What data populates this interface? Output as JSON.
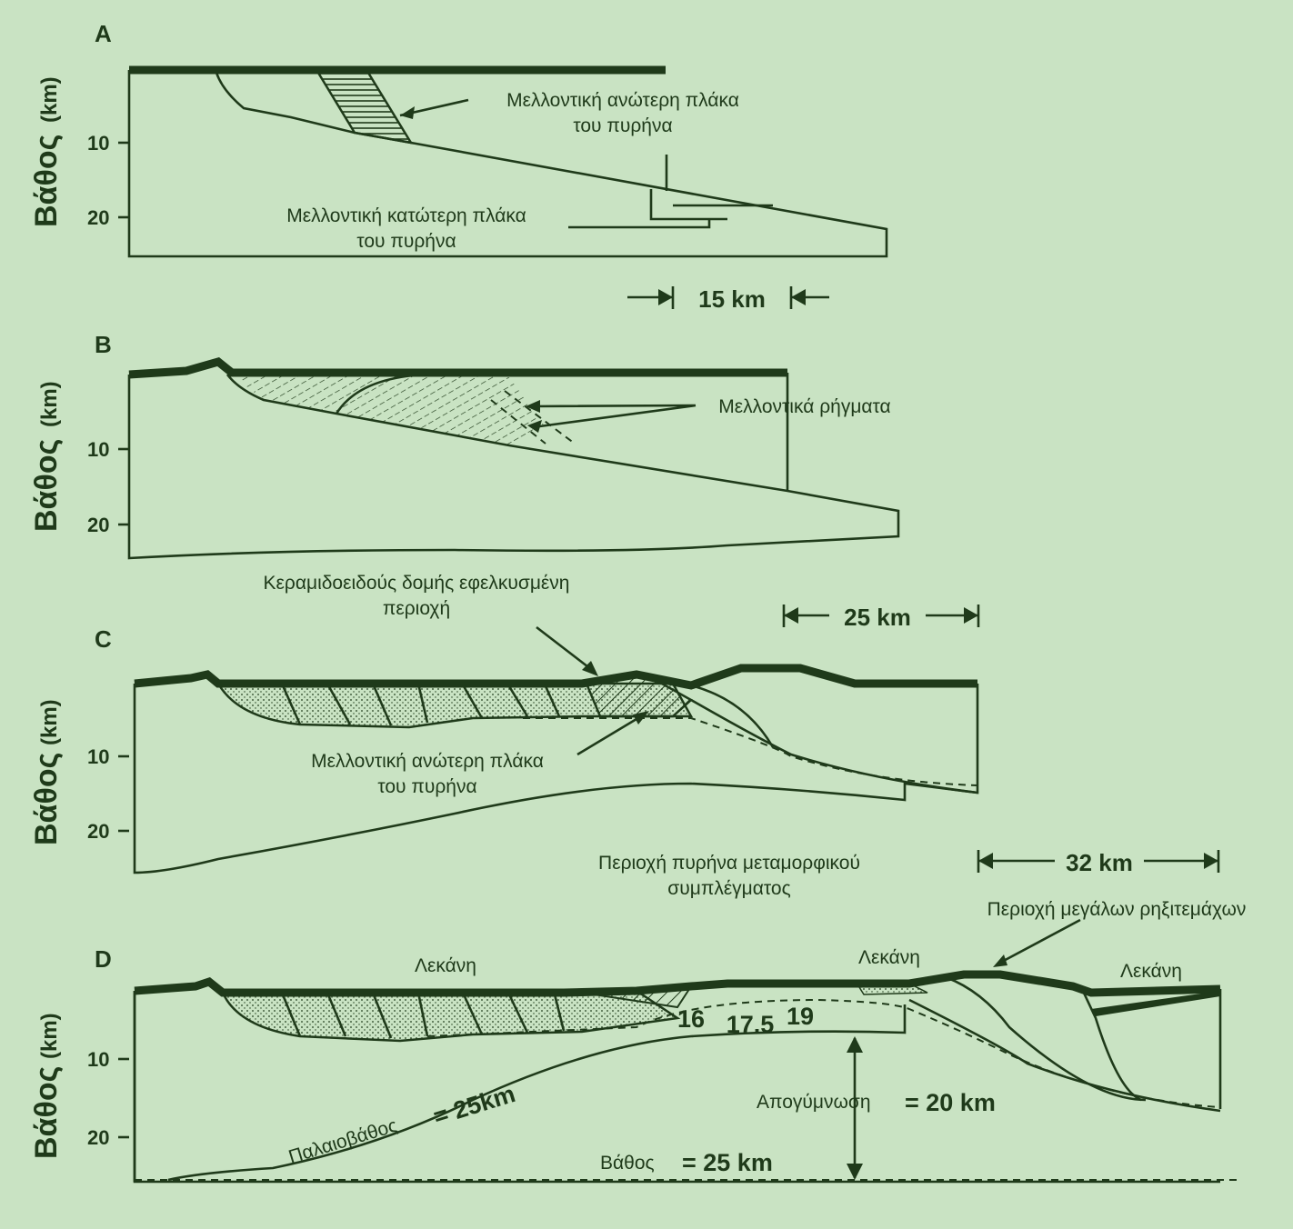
{
  "panels": {
    "A": {
      "letter": "A"
    },
    "B": {
      "letter": "B"
    },
    "C": {
      "letter": "C"
    },
    "D": {
      "letter": "D"
    }
  },
  "axis": {
    "title": "Βάθος",
    "unit": "(km)",
    "ticks": [
      "10",
      "20"
    ]
  },
  "labels": {
    "a_upper_1": "Μελλοντική ανώτερη πλάκα",
    "a_upper_2": "του πυρήνα",
    "a_lower_1": "Μελλοντική κατώτερη πλάκα",
    "a_lower_2": "του πυρήνα",
    "scale_a": "15 km",
    "b_faults": "Μελλοντικά ρήγματα",
    "b_tile_1": "Κεραμιδοειδούς δομής εφελκυσμένη",
    "b_tile_2": "περιοχή",
    "scale_b": "25 km",
    "c_upper_1": "Μελλοντική ανώτερη πλάκα",
    "c_upper_2": "του πυρήνα",
    "c_core_1": "Περιοχή πυρήνα μεταμορφικού",
    "c_core_2": "συμπλέγματος",
    "scale_c": "32 km",
    "d_blocks": "Περιοχή μεγάλων ρηξιτεμάχων",
    "d_basin_1": "Λεκάνη",
    "d_basin_2": "Λεκάνη",
    "d_basin_3": "Λεκάνη",
    "d_n1": "16",
    "d_n2": "17.5",
    "d_n3": "19",
    "d_paleo": "Παλαιοβάθος",
    "d_paleo_val": "= 25km",
    "d_denud": "Απογύμνωση",
    "d_denud_val": "= 20 km",
    "d_depth": "Βάθος",
    "d_depth_val": "= 25 km"
  },
  "colors": {
    "background": "#c9e3c3",
    "ink": "#1f3a1a"
  }
}
